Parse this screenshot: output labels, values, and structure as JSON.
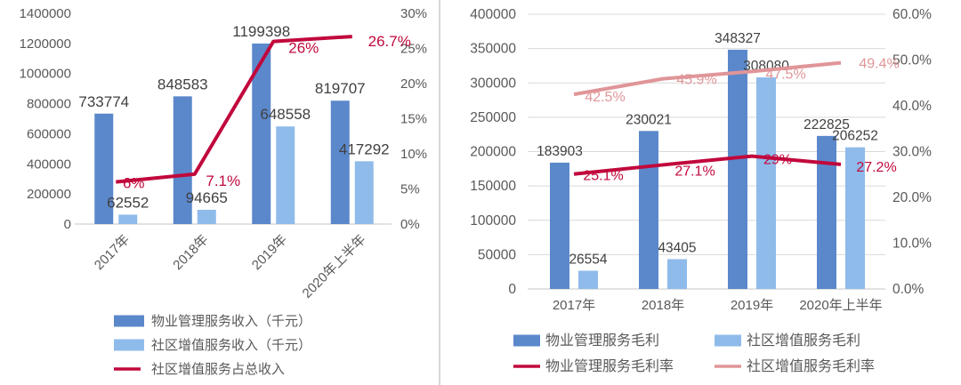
{
  "page": {
    "background": "#FFFFFF"
  },
  "colors": {
    "bar_primary": "#5B88CB",
    "bar_secondary": "#8FBBEB",
    "line_primary": "#C1083C",
    "line_secondary": "#E09598",
    "axis_text": "#595959",
    "data_label_text": "#404040",
    "gridline": "#D9D9D9",
    "axis_line": "#C6C6C6"
  },
  "chart_data": [
    {
      "type": "bar",
      "name": "revenue-chart",
      "categories": [
        "2017年",
        "2018年",
        "2019年",
        "2020年上半年"
      ],
      "left_axis": {
        "min": 0,
        "max": 1400000,
        "ticks": [
          "0",
          "200000",
          "400000",
          "600000",
          "800000",
          "1000000",
          "1200000",
          "1400000"
        ]
      },
      "right_axis": {
        "min": 0,
        "max": 30,
        "ticks": [
          "0%",
          "5%",
          "10%",
          "15%",
          "20%",
          "25%",
          "30%"
        ]
      },
      "grid": false,
      "legend_position": "bottom",
      "bar_series": [
        {
          "name": "物业管理服务收入（千元）",
          "color": "#5B88CB",
          "values": [
            733774,
            848583,
            1199398,
            819707
          ],
          "labels": [
            "733774",
            "848583",
            "1199398",
            "819707"
          ]
        },
        {
          "name": "社区增值服务收入（千元）",
          "color": "#8FBBEB",
          "values": [
            62552,
            94665,
            648558,
            417292
          ],
          "labels": [
            "62552",
            "94665",
            "648558",
            "417292"
          ]
        }
      ],
      "line_series": [
        {
          "name": "社区增值服务占总收入",
          "color": "#C1083C",
          "values": [
            6,
            7.1,
            26,
            26.7
          ],
          "labels": [
            "6%",
            "7.1%",
            "26%",
            "26.7%"
          ]
        }
      ]
    },
    {
      "type": "bar",
      "name": "profit-chart",
      "categories": [
        "2017年",
        "2018年",
        "2019年",
        "2020年上半年"
      ],
      "left_axis": {
        "min": 0,
        "max": 400000,
        "ticks": [
          "0",
          "50000",
          "100000",
          "150000",
          "200000",
          "250000",
          "300000",
          "350000",
          "400000"
        ]
      },
      "right_axis": {
        "min": 0,
        "max": 60,
        "ticks": [
          "0.0%",
          "10.0%",
          "20.0%",
          "30.0%",
          "40.0%",
          "50.0%",
          "60.0%"
        ]
      },
      "grid": true,
      "legend_position": "bottom",
      "bar_series": [
        {
          "name": "物业管理服务毛利",
          "color": "#5B88CB",
          "values": [
            183903,
            230021,
            348327,
            222825
          ],
          "labels": [
            "183903",
            "230021",
            "348327",
            "222825"
          ]
        },
        {
          "name": "社区增值服务毛利",
          "color": "#8FBBEB",
          "values": [
            26554,
            43405,
            308080,
            206252
          ],
          "labels": [
            "26554",
            "43405",
            "308080",
            "206252"
          ]
        }
      ],
      "line_series": [
        {
          "name": "物业管理服务毛利率",
          "color": "#C1083C",
          "values": [
            25.1,
            27.1,
            29,
            27.2
          ],
          "labels": [
            "25.1%",
            "27.1%",
            "29%",
            "27.2%"
          ]
        },
        {
          "name": "社区增值服务毛利率",
          "color": "#E09598",
          "values": [
            42.5,
            45.9,
            47.5,
            49.4
          ],
          "labels": [
            "42.5%",
            "45.9%",
            "47.5%",
            "49.4%"
          ]
        }
      ]
    }
  ]
}
